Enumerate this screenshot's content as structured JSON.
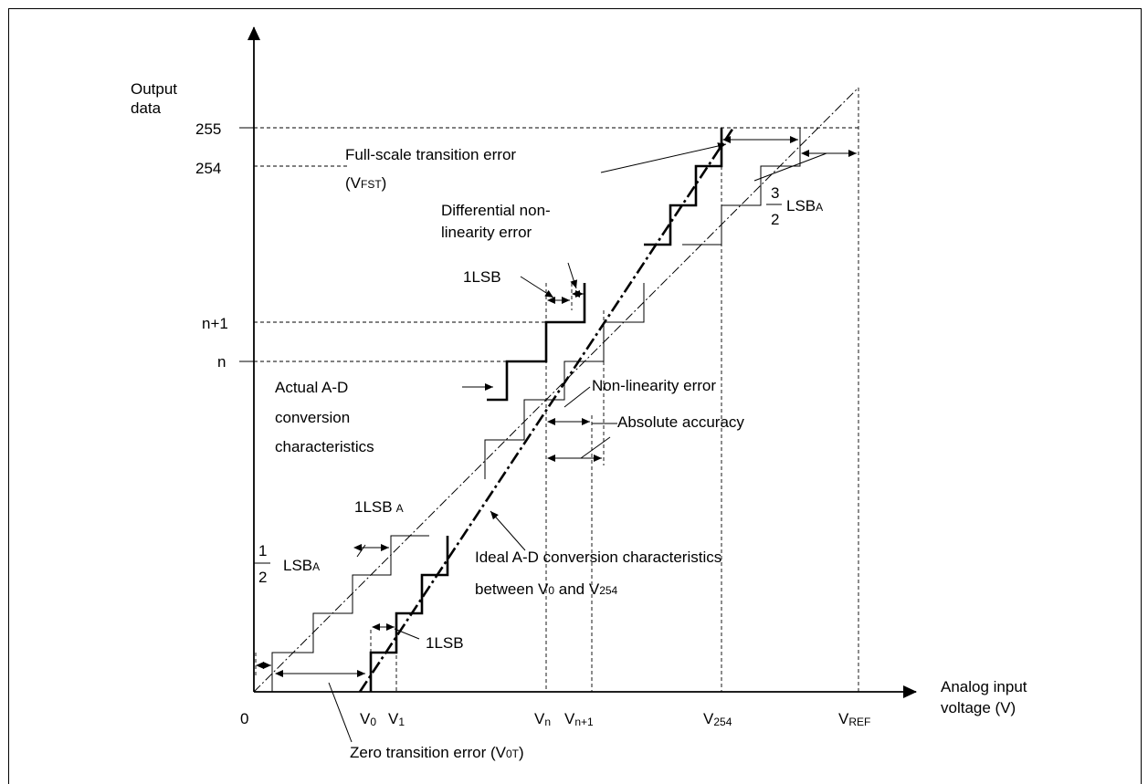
{
  "y_axis_title_line1": "Output",
  "y_axis_title_line2": "data",
  "x_axis_title_line1": "Analog input",
  "x_axis_title_line2": "voltage   (V)",
  "origin": "0",
  "y_ticks": {
    "t255": "255",
    "t254": "254",
    "n1": "n+1",
    "n": "n"
  },
  "x_ticks": {
    "v0_main": "V",
    "v0_sub": "0",
    "v1_main": "V",
    "v1_sub": "1",
    "vn_main": "V",
    "vn_sub": "n",
    "vn1_main": "V",
    "vn1_sub": "n+1",
    "v254_main": "V",
    "v254_sub": "254",
    "vref_main": "V",
    "vref_sub": "REF"
  },
  "labels": {
    "full_scale_line1": "Full-scale transition error",
    "full_scale_line2_open": "(V",
    "full_scale_line2_sub": "FST",
    "full_scale_line2_close": ")",
    "diff_line1": "Differential non-",
    "diff_line2": "linearity error",
    "one_lsb_top": "1LSB",
    "three_half_num": "3",
    "three_half_den": "2",
    "three_half_lsb": "LSB",
    "three_half_sub": "A",
    "actual_line1": "Actual A-D",
    "actual_line2": "conversion",
    "actual_line3": "characteristics",
    "nonlin": "Non-linearity error",
    "absolute": "Absolute accuracy",
    "one_lsba_main": "1LSB",
    "one_lsba_sub": "A",
    "half_num": "1",
    "half_den": "2",
    "half_lsb": "LSB",
    "half_sub": "A",
    "ideal_line1": "Ideal A-D conversion characteristics",
    "ideal_line2_a": "between V",
    "ideal_line2_sub0": "0",
    "ideal_line2_b": " and V",
    "ideal_line2_sub254": "254",
    "one_lsb_bottom": "1LSB",
    "zero_err_a": "Zero transition error (V",
    "zero_err_sub": "0T",
    "zero_err_close": ")"
  }
}
